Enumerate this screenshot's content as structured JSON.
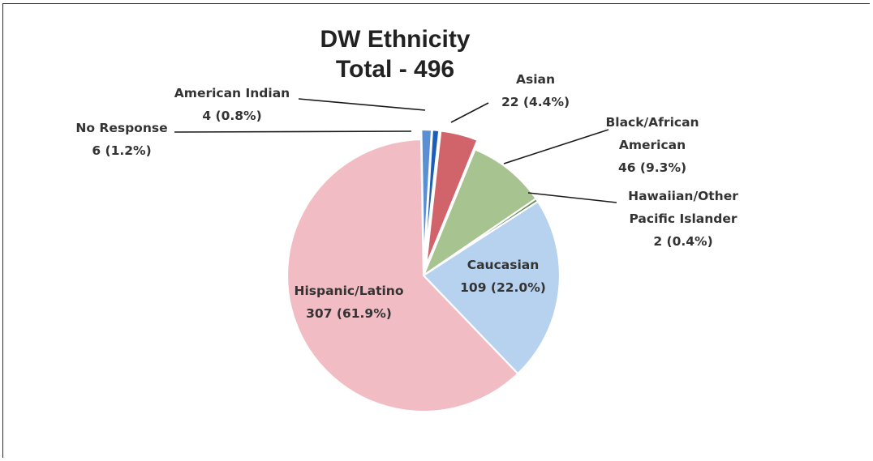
{
  "chart_data": {
    "type": "pie",
    "title": "DW Ethnicity",
    "subtitle": "Total - 496",
    "total": 496,
    "slices": [
      {
        "name": "No Response",
        "value": 6,
        "percent": "1.2%",
        "label_lines": [
          "No Response",
          "6 (1.2%)"
        ],
        "color": "#5b8fd4",
        "exploded": true
      },
      {
        "name": "American Indian",
        "value": 4,
        "percent": "0.8%",
        "label_lines": [
          "American Indian",
          "4 (0.8%)"
        ],
        "color": "#1d5fb8",
        "exploded": true
      },
      {
        "name": "Asian",
        "value": 22,
        "percent": "4.4%",
        "label_lines": [
          "Asian",
          "22 (4.4%)"
        ],
        "color": "#d1646b",
        "exploded": true
      },
      {
        "name": "Black/African American",
        "value": 46,
        "percent": "9.3%",
        "label_lines": [
          "Black/African",
          "American",
          "46 (9.3%)"
        ],
        "color": "#a7c490",
        "exploded": false
      },
      {
        "name": "Hawaiian/Other Pacific Islander",
        "value": 2,
        "percent": "0.4%",
        "label_lines": [
          "Hawaiian/Other",
          "Pacific Islander",
          "2 (0.4%)"
        ],
        "color": "#6a8b5a",
        "exploded": false
      },
      {
        "name": "Caucasian",
        "value": 109,
        "percent": "22.0%",
        "label_lines": [
          "Caucasian",
          "109 (22.0%)"
        ],
        "color": "#b6d2ee",
        "exploded": false
      },
      {
        "name": "Hispanic/Latino",
        "value": 307,
        "percent": "61.9%",
        "label_lines": [
          "Hispanic/Latino",
          "307 (61.9%)"
        ],
        "color": "#f2bcc4",
        "exploded": false
      }
    ]
  }
}
